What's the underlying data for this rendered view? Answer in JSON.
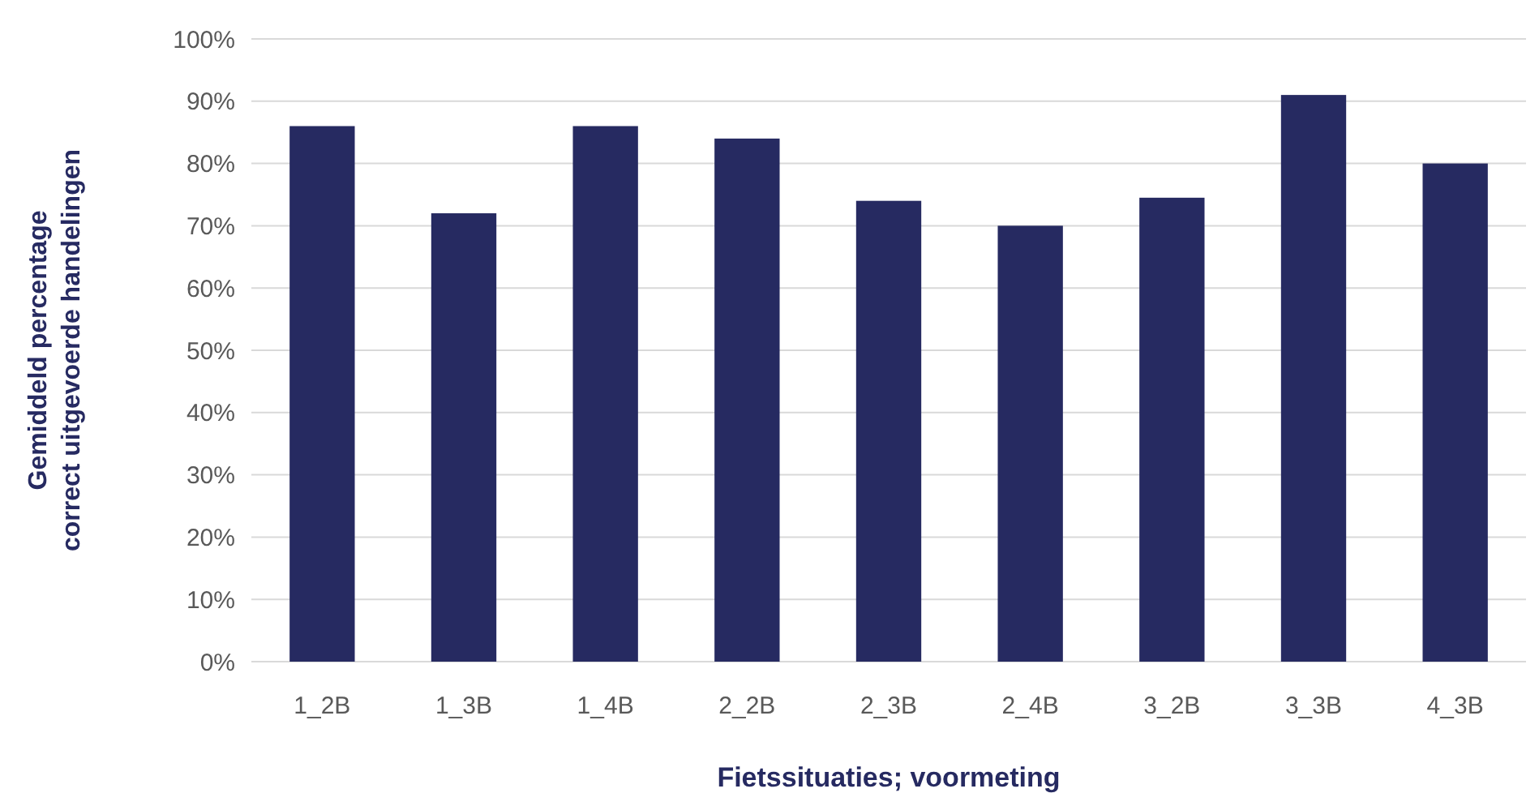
{
  "chart_data": {
    "type": "bar",
    "xlabel": "Fietssituaties; voormeting",
    "ylabel": "Gemiddeld percentage correct uitgevoerde handelingen",
    "categories": [
      "1_2B",
      "1_3B",
      "1_4B",
      "2_2B",
      "2_3B",
      "2_4B",
      "3_2B",
      "3_3B",
      "4_3B"
    ],
    "values": [
      86,
      72,
      86,
      84,
      74,
      70,
      74.5,
      91,
      80
    ],
    "color": "#262a61",
    "ylim": [
      0,
      100
    ],
    "yticks": [
      {
        "value": 0,
        "label": "0%"
      },
      {
        "value": 10,
        "label": "10%"
      },
      {
        "value": 20,
        "label": "20%"
      },
      {
        "value": 30,
        "label": "30%"
      },
      {
        "value": 40,
        "label": "40%"
      },
      {
        "value": 50,
        "label": "50%"
      },
      {
        "value": 60,
        "label": "60%"
      },
      {
        "value": 70,
        "label": "70%"
      },
      {
        "value": 80,
        "label": "80%"
      },
      {
        "value": 90,
        "label": "90%"
      },
      {
        "value": 100,
        "label": "100%"
      }
    ],
    "grid": "y"
  }
}
